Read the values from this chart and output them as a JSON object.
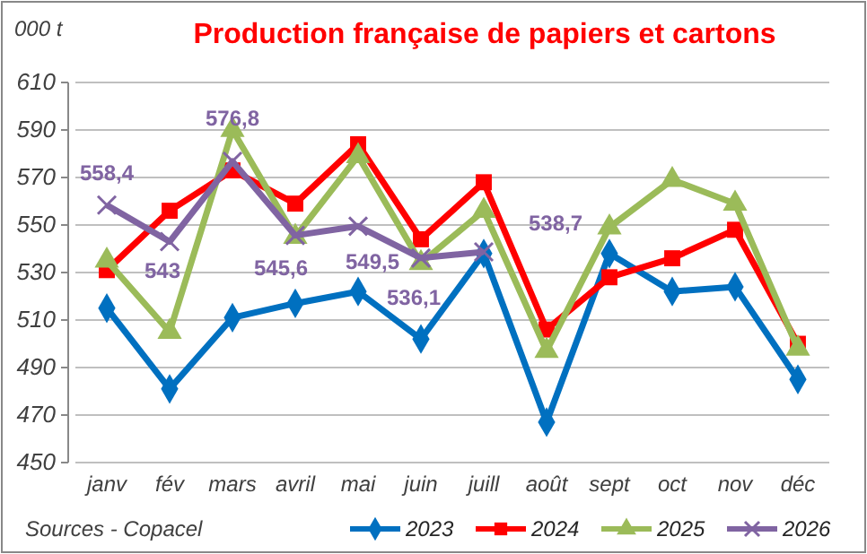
{
  "chart_data": {
    "type": "line",
    "title": "Production française de papiers et cartons",
    "ylabel": "000 t",
    "categories": [
      "janv",
      "fév",
      "mars",
      "avril",
      "mai",
      "juin",
      "juill",
      "août",
      "sept",
      "oct",
      "nov",
      "déc"
    ],
    "series": [
      {
        "name": "2023",
        "color": "#0070c0",
        "marker": "diamond",
        "values": [
          515,
          481,
          511,
          517,
          522,
          502,
          538,
          467,
          538,
          522,
          524,
          485
        ]
      },
      {
        "name": "2024",
        "color": "#ff0000",
        "marker": "square",
        "values": [
          531,
          556,
          573,
          559,
          584,
          544,
          568,
          506,
          528,
          536,
          548,
          500
        ]
      },
      {
        "name": "2025",
        "color": "#9bbb59",
        "marker": "triangle",
        "values": [
          535,
          505,
          590,
          545,
          579,
          534,
          556,
          497,
          549,
          569,
          559,
          498
        ]
      },
      {
        "name": "2026",
        "color": "#8064a2",
        "marker": "cross",
        "values": [
          558.4,
          543,
          576.8,
          545.6,
          549.5,
          536.1,
          538.7,
          null,
          null,
          null,
          null,
          null
        ],
        "value_labels": [
          "558,4",
          "543",
          "576,8",
          "545,6",
          "549,5",
          "536,1",
          "538,7",
          null,
          null,
          null,
          null,
          null
        ]
      }
    ],
    "ylim": [
      450,
      610
    ],
    "yticks": [
      450,
      470,
      490,
      510,
      530,
      550,
      570,
      590,
      610
    ],
    "grid": "y",
    "legend": "bottom",
    "line_style": "solid",
    "annotations": [
      "Sources - Copacel"
    ]
  }
}
